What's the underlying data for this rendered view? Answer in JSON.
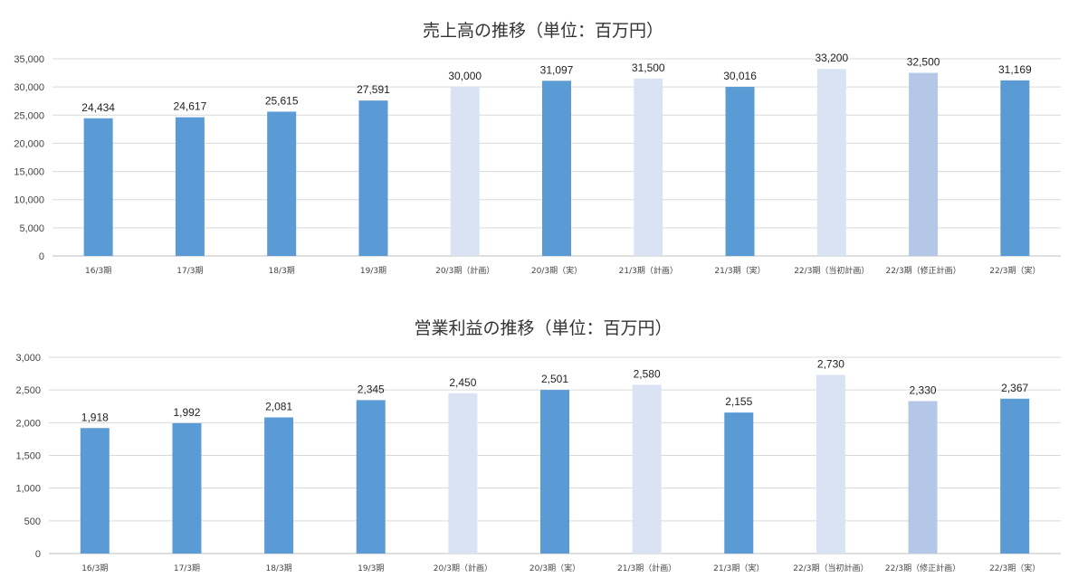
{
  "colors": {
    "actual": "#5b9bd5",
    "plan": "#dae3f3",
    "revised_plan": "#b4c7e7",
    "grid": "#d9d9d9"
  },
  "chart_data": [
    {
      "type": "bar",
      "title": "売上高の推移（単位：百万円）",
      "xlabel": "",
      "ylabel": "",
      "ylim": [
        0,
        35000
      ],
      "yticks": [
        "0",
        "5,000",
        "10,000",
        "15,000",
        "20,000",
        "25,000",
        "30,000",
        "35,000"
      ],
      "ytick_values": [
        0,
        5000,
        10000,
        15000,
        20000,
        25000,
        30000,
        35000
      ],
      "grid": true,
      "legend": "none",
      "categories": [
        "16/3期",
        "17/3期",
        "18/3期",
        "19/3期",
        "20/3期（計画）",
        "20/3期（実）",
        "21/3期（計画）",
        "21/3期（実）",
        "22/3期（当初計画）",
        "22/3期（修正計画）",
        "22/3期（実）"
      ],
      "values": [
        24434,
        24617,
        25615,
        27591,
        30000,
        31097,
        31500,
        30016,
        33200,
        32500,
        31169
      ],
      "value_labels": [
        "24,434",
        "24,617",
        "25,615",
        "27,591",
        "30,000",
        "31,097",
        "31,500",
        "30,016",
        "33,200",
        "32,500",
        "31,169"
      ],
      "bar_kinds": [
        "actual",
        "actual",
        "actual",
        "actual",
        "plan",
        "actual",
        "plan",
        "actual",
        "plan",
        "revised_plan",
        "actual"
      ]
    },
    {
      "type": "bar",
      "title": "営業利益の推移（単位：百万円）",
      "xlabel": "",
      "ylabel": "",
      "ylim": [
        0,
        3000
      ],
      "yticks": [
        "0",
        "500",
        "1,000",
        "1,500",
        "2,000",
        "2,500",
        "3,000"
      ],
      "ytick_values": [
        0,
        500,
        1000,
        1500,
        2000,
        2500,
        3000
      ],
      "grid": true,
      "legend": "none",
      "categories": [
        "16/3期",
        "17/3期",
        "18/3期",
        "19/3期",
        "20/3期（計画）",
        "20/3期（実）",
        "21/3期（計画）",
        "21/3期（実）",
        "22/3期（当初計画）",
        "22/3期（修正計画）",
        "22/3期（実）"
      ],
      "values": [
        1918,
        1992,
        2081,
        2345,
        2450,
        2501,
        2580,
        2155,
        2730,
        2330,
        2367
      ],
      "value_labels": [
        "1,918",
        "1,992",
        "2,081",
        "2,345",
        "2,450",
        "2,501",
        "2,580",
        "2,155",
        "2,730",
        "2,330",
        "2,367"
      ],
      "bar_kinds": [
        "actual",
        "actual",
        "actual",
        "actual",
        "plan",
        "actual",
        "plan",
        "actual",
        "plan",
        "revised_plan",
        "actual"
      ]
    }
  ]
}
